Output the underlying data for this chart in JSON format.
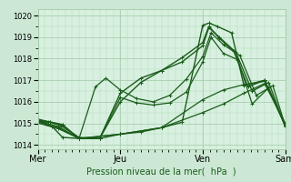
{
  "bg_color": "#cce8d4",
  "plot_bg_color": "#d8f0e0",
  "grid_color": "#b0d8b8",
  "grid_color_v": "#a0c8a8",
  "line_color_dark": "#1a5c1a",
  "line_color_mid": "#2e7d32",
  "ylim": [
    1013.8,
    1020.3
  ],
  "xlim": [
    0,
    6
  ],
  "yticks": [
    1014,
    1015,
    1016,
    1017,
    1018,
    1019,
    1020
  ],
  "xtick_labels": [
    "Mer",
    "Jeu",
    "Ven",
    "Sam"
  ],
  "xtick_positions": [
    0,
    2,
    4,
    6
  ],
  "xlabel": "Pression niveau de la mer(  hPa  )",
  "series": [
    {
      "x": [
        0.0,
        0.15,
        0.35,
        0.6,
        1.0,
        1.5,
        2.0,
        2.5,
        3.0,
        3.5,
        4.0,
        4.15,
        4.35,
        4.7,
        5.0,
        5.5,
        6.0
      ],
      "y": [
        1015.15,
        1015.05,
        1014.85,
        1014.35,
        1014.3,
        1014.3,
        1014.5,
        1014.6,
        1014.8,
        1015.05,
        1019.55,
        1019.65,
        1019.5,
        1019.2,
        1016.75,
        1017.0,
        1014.9
      ]
    },
    {
      "x": [
        0.0,
        0.2,
        0.5,
        1.0,
        1.5,
        2.0,
        2.5,
        3.0,
        3.5,
        4.0,
        4.15,
        4.4,
        4.8,
        5.2,
        5.6,
        6.0
      ],
      "y": [
        1015.1,
        1015.0,
        1014.85,
        1014.3,
        1014.3,
        1016.0,
        1016.9,
        1017.45,
        1017.85,
        1018.6,
        1019.45,
        1019.0,
        1018.3,
        1016.5,
        1016.9,
        1014.85
      ]
    },
    {
      "x": [
        0.0,
        0.25,
        0.55,
        1.0,
        1.5,
        2.0,
        2.5,
        3.0,
        3.5,
        4.0,
        4.15,
        4.4,
        4.75,
        5.1,
        5.5,
        6.0
      ],
      "y": [
        1015.2,
        1015.08,
        1014.9,
        1014.35,
        1014.3,
        1016.4,
        1017.1,
        1017.45,
        1018.05,
        1018.75,
        1019.5,
        1018.95,
        1018.35,
        1016.7,
        1017.0,
        1014.9
      ]
    },
    {
      "x": [
        0.0,
        0.3,
        0.6,
        1.0,
        1.4,
        1.65,
        2.0,
        2.4,
        2.8,
        3.2,
        3.6,
        4.0,
        4.2,
        4.5,
        4.9,
        5.3,
        5.7,
        6.0
      ],
      "y": [
        1015.15,
        1015.07,
        1014.95,
        1014.3,
        1016.7,
        1017.1,
        1016.55,
        1016.15,
        1016.0,
        1016.3,
        1017.05,
        1018.1,
        1019.2,
        1018.65,
        1018.15,
        1016.3,
        1016.75,
        1014.9
      ]
    },
    {
      "x": [
        0.0,
        0.3,
        0.6,
        1.0,
        1.5,
        2.0,
        2.4,
        2.8,
        3.2,
        3.6,
        4.0,
        4.2,
        4.5,
        4.85,
        5.2,
        5.6,
        6.0
      ],
      "y": [
        1015.1,
        1015.05,
        1014.92,
        1014.3,
        1014.3,
        1016.2,
        1015.95,
        1015.85,
        1015.95,
        1016.45,
        1017.85,
        1019.0,
        1018.25,
        1017.95,
        1015.9,
        1016.65,
        1014.9
      ]
    },
    {
      "x": [
        0.0,
        0.5,
        1.0,
        2.0,
        3.0,
        4.0,
        4.5,
        5.0,
        5.5,
        6.0
      ],
      "y": [
        1015.05,
        1014.8,
        1014.3,
        1014.5,
        1014.8,
        1016.1,
        1016.55,
        1016.8,
        1016.95,
        1015.0
      ]
    },
    {
      "x": [
        0.0,
        0.5,
        1.0,
        2.0,
        3.0,
        4.0,
        4.5,
        5.0,
        5.5,
        6.0
      ],
      "y": [
        1015.02,
        1014.75,
        1014.3,
        1014.5,
        1014.8,
        1015.5,
        1015.9,
        1016.4,
        1016.85,
        1015.0
      ]
    }
  ],
  "marker": "+"
}
